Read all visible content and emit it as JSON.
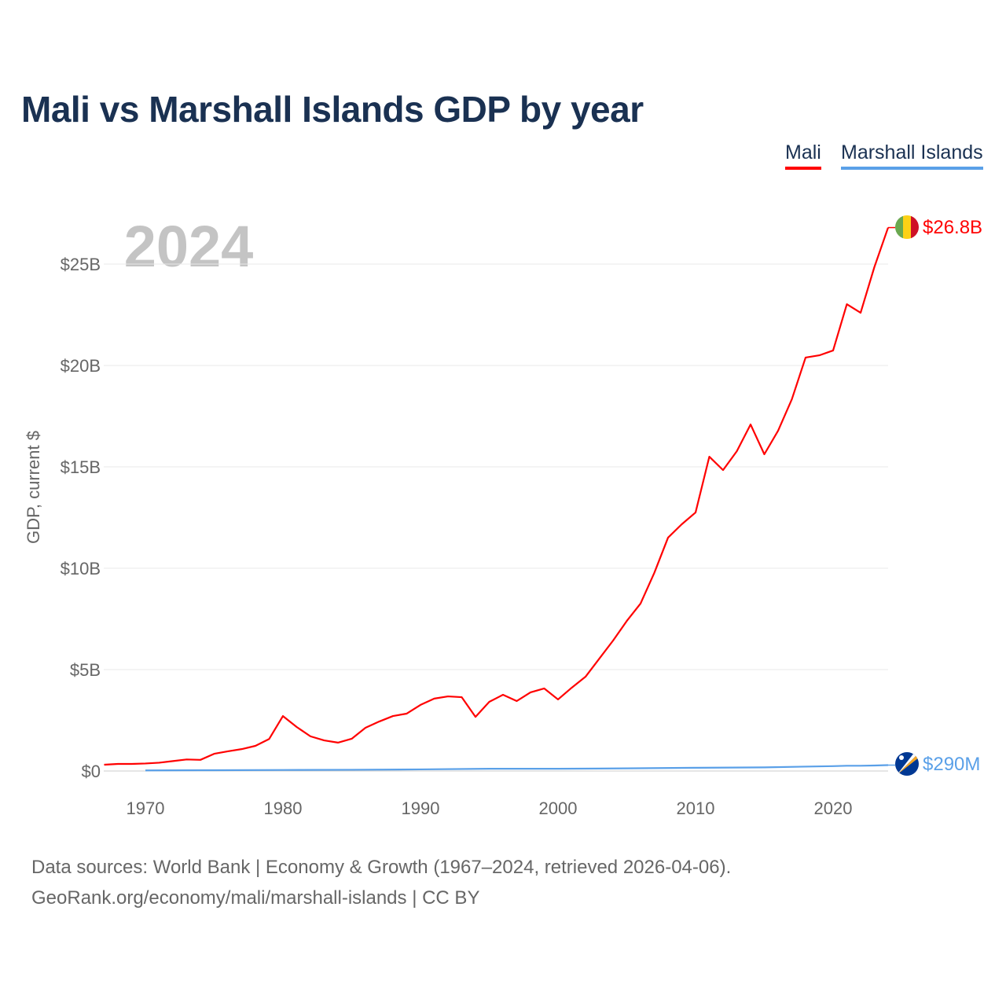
{
  "title": "Mali vs Marshall Islands GDP by year",
  "chart_data": {
    "type": "line",
    "title": "Mali vs Marshall Islands GDP by year",
    "ylabel": "GDP, current $",
    "xlabel": "",
    "xlim": [
      1967,
      2024
    ],
    "ylim": [
      0,
      27
    ],
    "x_ticks": [
      1970,
      1980,
      1990,
      2000,
      2010,
      2020
    ],
    "y_ticks": [
      0,
      5,
      10,
      15,
      20,
      25
    ],
    "y_tick_labels": [
      "$0",
      "$5B",
      "$10B",
      "$15B",
      "$20B",
      "$25B"
    ],
    "grid": true,
    "year_watermark": "2024",
    "legend_position": "top-right",
    "series": [
      {
        "name": "Mali",
        "color": "#ff0000",
        "end_label": "$26.8B",
        "flag": "mali-flag",
        "x": [
          1967,
          1968,
          1969,
          1970,
          1971,
          1972,
          1973,
          1974,
          1975,
          1976,
          1977,
          1978,
          1979,
          1980,
          1981,
          1982,
          1983,
          1984,
          1985,
          1986,
          1987,
          1988,
          1989,
          1990,
          1991,
          1992,
          1993,
          1994,
          1995,
          1996,
          1997,
          1998,
          1999,
          2000,
          2001,
          2002,
          2003,
          2004,
          2005,
          2006,
          2007,
          2008,
          2009,
          2010,
          2011,
          2012,
          2013,
          2014,
          2015,
          2016,
          2017,
          2018,
          2019,
          2020,
          2021,
          2022,
          2023,
          2024
        ],
        "values": [
          0.31,
          0.35,
          0.35,
          0.37,
          0.41,
          0.49,
          0.57,
          0.55,
          0.85,
          0.97,
          1.08,
          1.24,
          1.58,
          2.71,
          2.17,
          1.71,
          1.51,
          1.4,
          1.59,
          2.13,
          2.44,
          2.71,
          2.83,
          3.26,
          3.57,
          3.68,
          3.64,
          2.67,
          3.41,
          3.76,
          3.45,
          3.88,
          4.07,
          3.53,
          4.11,
          4.65,
          5.54,
          6.43,
          7.4,
          8.26,
          9.77,
          11.51,
          12.17,
          12.75,
          15.5,
          14.84,
          15.77,
          17.09,
          15.62,
          16.78,
          18.33,
          20.39,
          20.5,
          20.74,
          23.02,
          22.6,
          24.85,
          26.8
        ]
      },
      {
        "name": "Marshall Islands",
        "color": "#5aa0e8",
        "end_label": "$290M",
        "flag": "marshall-islands-flag",
        "x": [
          1970,
          1975,
          1980,
          1985,
          1990,
          1995,
          2000,
          2005,
          2010,
          2015,
          2020,
          2021,
          2022,
          2023,
          2024
        ],
        "values": [
          0.03,
          0.04,
          0.05,
          0.06,
          0.08,
          0.11,
          0.11,
          0.13,
          0.16,
          0.18,
          0.24,
          0.26,
          0.26,
          0.27,
          0.29
        ]
      }
    ]
  },
  "footer": {
    "line1": "Data sources: World Bank | Economy & Growth (1967–2024, retrieved 2026-04-06).",
    "line2": "GeoRank.org/economy/mali/marshall-islands | CC BY"
  }
}
